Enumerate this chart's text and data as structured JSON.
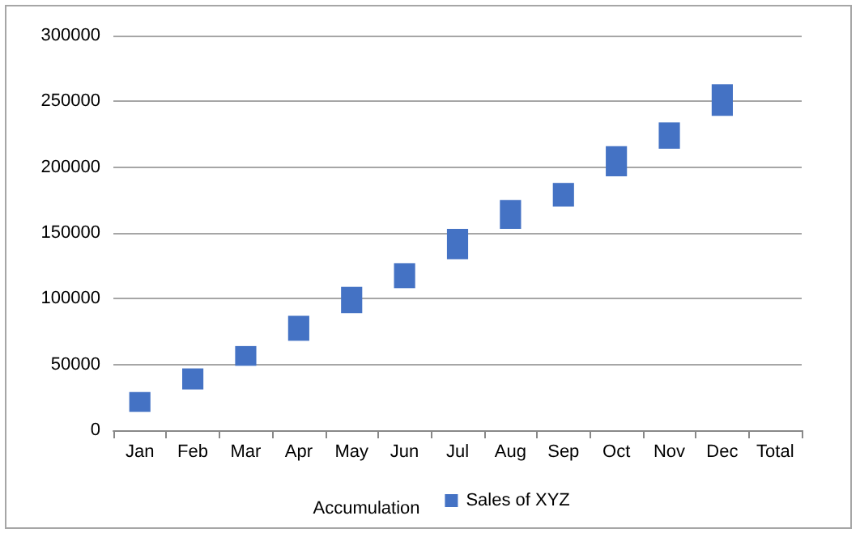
{
  "chart_data": {
    "type": "bar",
    "categories": [
      "Jan",
      "Feb",
      "Mar",
      "Apr",
      "May",
      "Jun",
      "Jul",
      "Aug",
      "Sep",
      "Oct",
      "Nov",
      "Dec",
      "Total"
    ],
    "series": [
      {
        "name": "Sales of XYZ",
        "color": "#4472c4",
        "values": [
          15000,
          16000,
          15000,
          19000,
          20000,
          19000,
          23000,
          22000,
          18000,
          23000,
          20000,
          24000,
          null
        ],
        "base": [
          14000,
          31000,
          49000,
          68000,
          89000,
          108000,
          130000,
          153000,
          170000,
          193000,
          214000,
          239000,
          null
        ]
      }
    ],
    "annotations": [
      "Accumulation"
    ],
    "ylim": [
      0,
      300000
    ],
    "yticks": [
      0,
      50000,
      100000,
      150000,
      200000,
      250000,
      300000
    ],
    "grid": "y",
    "legend": "bottom"
  }
}
